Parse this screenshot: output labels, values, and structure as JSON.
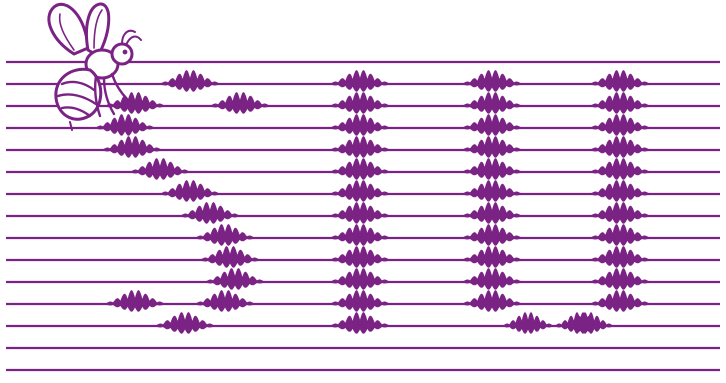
{
  "artwork": {
    "stroke_color": "#7b2285",
    "background_color": "#ffffff",
    "icon": "bee-icon",
    "staff_line_count": 15,
    "glyphs": [
      "S",
      "U",
      "U",
      "U"
    ]
  }
}
